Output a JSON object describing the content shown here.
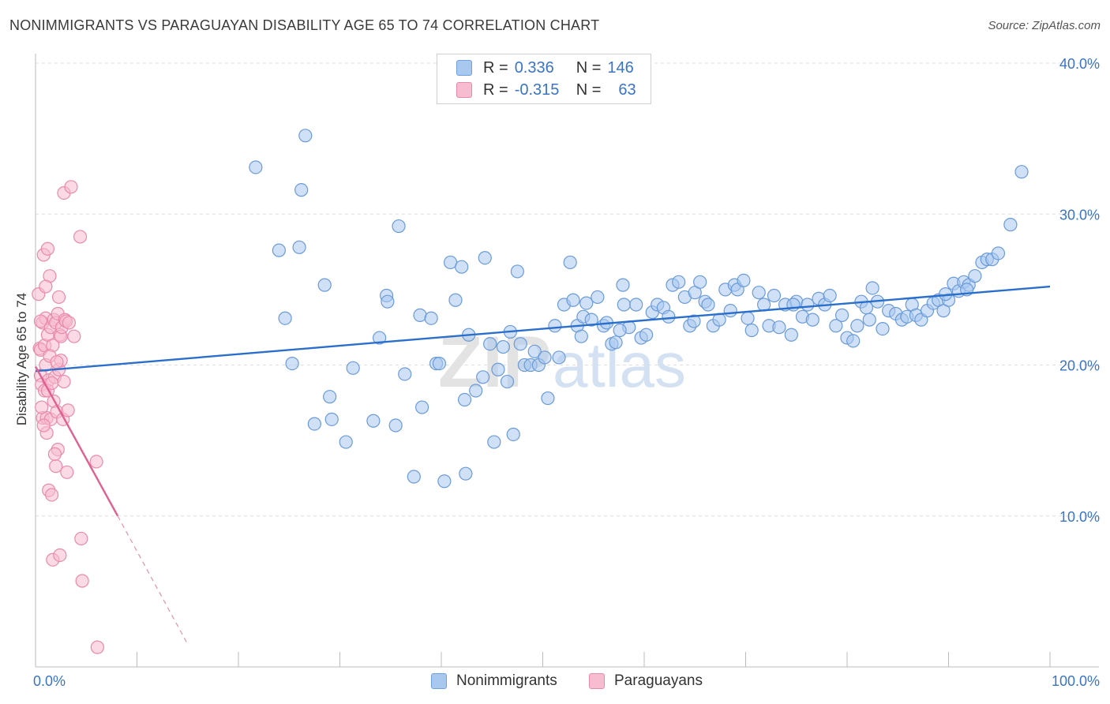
{
  "title": "NONIMMIGRANTS VS PARAGUAYAN DISABILITY AGE 65 TO 74 CORRELATION CHART",
  "source": "Source: ZipAtlas.com",
  "watermark": {
    "zip": "ZIP",
    "atlas": "atlas"
  },
  "legend": {
    "rows": [
      {
        "r_label": "R =",
        "r_value": "0.336",
        "n_label": "N =",
        "n_value": "146",
        "color": "#a9c8f0",
        "border": "#6f9fde"
      },
      {
        "r_label": "R =",
        "r_value": "-0.315",
        "n_label": "N =",
        "n_value": "63",
        "color": "#f7bcd0",
        "border": "#e98aab"
      }
    ]
  },
  "bottom_legend": [
    {
      "label": "Nonimmigrants",
      "color": "#a9c8f0",
      "border": "#6f9fde"
    },
    {
      "label": "Paraguayans",
      "color": "#f7bcd0",
      "border": "#e98aab"
    }
  ],
  "chart_data": {
    "type": "scatter",
    "ylabel": "Disability Age 65 to 74",
    "xlim": [
      0,
      100
    ],
    "ylim": [
      0,
      40
    ],
    "x_tick_labels": [
      "0.0%",
      "100.0%"
    ],
    "y_ticks": [
      10,
      20,
      30,
      40
    ],
    "y_tick_labels": [
      "10.0%",
      "20.0%",
      "30.0%",
      "40.0%"
    ],
    "grid": true,
    "series": [
      {
        "name": "Nonimmigrants",
        "color": "#a9c8f0",
        "stroke": "#6a9bd8",
        "trend": {
          "x": [
            0,
            100
          ],
          "y": [
            19.6,
            25.2
          ],
          "color": "#2b6fcc"
        },
        "points": [
          [
            21.7,
            33.1
          ],
          [
            26.6,
            35.2
          ],
          [
            26.2,
            31.6
          ],
          [
            26.0,
            27.8
          ],
          [
            24.0,
            27.6
          ],
          [
            24.6,
            23.1
          ],
          [
            25.3,
            20.1
          ],
          [
            28.5,
            25.3
          ],
          [
            29.0,
            17.9
          ],
          [
            27.5,
            16.1
          ],
          [
            29.2,
            16.4
          ],
          [
            30.6,
            14.9
          ],
          [
            31.3,
            19.8
          ],
          [
            33.3,
            16.3
          ],
          [
            33.9,
            21.8
          ],
          [
            34.6,
            24.6
          ],
          [
            34.7,
            24.2
          ],
          [
            35.5,
            16.0
          ],
          [
            35.8,
            29.2
          ],
          [
            36.4,
            19.4
          ],
          [
            37.3,
            12.6
          ],
          [
            37.9,
            23.3
          ],
          [
            38.1,
            17.2
          ],
          [
            39.0,
            23.1
          ],
          [
            39.5,
            20.1
          ],
          [
            39.8,
            20.1
          ],
          [
            40.3,
            12.3
          ],
          [
            40.9,
            26.8
          ],
          [
            41.4,
            24.3
          ],
          [
            42.0,
            26.5
          ],
          [
            42.3,
            17.7
          ],
          [
            42.4,
            12.8
          ],
          [
            42.7,
            22.0
          ],
          [
            43.4,
            18.3
          ],
          [
            44.1,
            19.2
          ],
          [
            44.3,
            27.1
          ],
          [
            44.8,
            21.4
          ],
          [
            45.2,
            14.9
          ],
          [
            45.6,
            19.7
          ],
          [
            46.1,
            21.2
          ],
          [
            46.5,
            18.9
          ],
          [
            47.1,
            15.4
          ],
          [
            47.5,
            26.2
          ],
          [
            47.8,
            21.4
          ],
          [
            48.2,
            20.0
          ],
          [
            48.8,
            20.0
          ],
          [
            49.2,
            20.9
          ],
          [
            49.6,
            20.0
          ],
          [
            50.2,
            20.5
          ],
          [
            50.5,
            17.8
          ],
          [
            51.2,
            22.6
          ],
          [
            51.6,
            20.5
          ],
          [
            52.1,
            24.0
          ],
          [
            52.7,
            26.8
          ],
          [
            53.0,
            24.3
          ],
          [
            53.4,
            22.6
          ],
          [
            54.0,
            23.2
          ],
          [
            54.3,
            24.1
          ],
          [
            54.8,
            23.0
          ],
          [
            55.4,
            24.5
          ],
          [
            56.0,
            22.6
          ],
          [
            56.3,
            22.8
          ],
          [
            56.8,
            21.4
          ],
          [
            57.2,
            21.5
          ],
          [
            57.9,
            25.3
          ],
          [
            58.0,
            24.0
          ],
          [
            58.5,
            22.5
          ],
          [
            59.2,
            24.0
          ],
          [
            59.7,
            21.8
          ],
          [
            60.2,
            22.0
          ],
          [
            60.8,
            23.5
          ],
          [
            61.3,
            24.0
          ],
          [
            61.9,
            23.8
          ],
          [
            62.4,
            23.2
          ],
          [
            62.8,
            25.3
          ],
          [
            63.4,
            25.5
          ],
          [
            64.0,
            24.5
          ],
          [
            64.5,
            22.6
          ],
          [
            65.0,
            24.8
          ],
          [
            65.5,
            25.5
          ],
          [
            66.0,
            24.2
          ],
          [
            66.3,
            24.0
          ],
          [
            66.8,
            22.6
          ],
          [
            67.4,
            23.0
          ],
          [
            68.0,
            25.0
          ],
          [
            68.5,
            23.6
          ],
          [
            68.9,
            25.3
          ],
          [
            69.2,
            25.0
          ],
          [
            69.8,
            25.6
          ],
          [
            70.2,
            23.1
          ],
          [
            70.6,
            22.3
          ],
          [
            71.3,
            24.8
          ],
          [
            71.8,
            24.0
          ],
          [
            72.3,
            22.6
          ],
          [
            72.8,
            24.6
          ],
          [
            73.3,
            22.5
          ],
          [
            73.9,
            24.0
          ],
          [
            74.5,
            22.0
          ],
          [
            75.0,
            24.2
          ],
          [
            75.6,
            23.2
          ],
          [
            76.1,
            24.0
          ],
          [
            76.6,
            23.0
          ],
          [
            77.2,
            24.4
          ],
          [
            77.8,
            24.0
          ],
          [
            78.3,
            24.6
          ],
          [
            78.9,
            22.6
          ],
          [
            79.5,
            23.3
          ],
          [
            80.0,
            21.8
          ],
          [
            80.6,
            21.6
          ],
          [
            81.0,
            22.6
          ],
          [
            81.4,
            24.2
          ],
          [
            81.9,
            23.8
          ],
          [
            82.5,
            25.1
          ],
          [
            83.0,
            24.2
          ],
          [
            83.5,
            22.4
          ],
          [
            84.1,
            23.6
          ],
          [
            84.8,
            23.4
          ],
          [
            85.4,
            23.0
          ],
          [
            85.9,
            23.2
          ],
          [
            86.4,
            24.0
          ],
          [
            86.8,
            23.3
          ],
          [
            87.3,
            23.0
          ],
          [
            87.9,
            23.6
          ],
          [
            88.5,
            24.1
          ],
          [
            89.0,
            24.3
          ],
          [
            89.5,
            23.6
          ],
          [
            90.0,
            24.3
          ],
          [
            90.5,
            25.4
          ],
          [
            91.0,
            24.9
          ],
          [
            91.5,
            25.5
          ],
          [
            92.0,
            25.3
          ],
          [
            92.6,
            25.9
          ],
          [
            93.3,
            26.8
          ],
          [
            93.8,
            27.0
          ],
          [
            94.3,
            27.0
          ],
          [
            94.9,
            27.4
          ],
          [
            96.1,
            29.3
          ],
          [
            97.2,
            32.8
          ],
          [
            91.8,
            25.0
          ],
          [
            89.7,
            24.7
          ],
          [
            82.2,
            23.0
          ],
          [
            74.7,
            24.0
          ],
          [
            57.6,
            22.3
          ],
          [
            64.9,
            22.9
          ],
          [
            53.8,
            21.9
          ],
          [
            46.8,
            22.2
          ]
        ]
      },
      {
        "name": "Paraguayans",
        "color": "#f7bcd0",
        "stroke": "#e98aab",
        "trend": {
          "x": [
            0,
            8.1
          ],
          "y": [
            19.9,
            10.0
          ],
          "color": "#e0608f"
        },
        "trend_dashed": {
          "x": [
            8.1,
            15
          ],
          "y": [
            10.0,
            1.5
          ],
          "color": "#e890af"
        },
        "points": [
          [
            0.3,
            24.7
          ],
          [
            0.4,
            21.1
          ],
          [
            0.5,
            21.0
          ],
          [
            0.5,
            19.3
          ],
          [
            0.6,
            18.7
          ],
          [
            0.7,
            22.8
          ],
          [
            0.7,
            16.5
          ],
          [
            0.8,
            27.3
          ],
          [
            0.9,
            18.3
          ],
          [
            0.9,
            21.3
          ],
          [
            1.0,
            23.1
          ],
          [
            1.0,
            20.0
          ],
          [
            1.1,
            16.5
          ],
          [
            1.1,
            15.5
          ],
          [
            1.2,
            27.7
          ],
          [
            1.2,
            22.0
          ],
          [
            1.3,
            19.0
          ],
          [
            1.3,
            11.7
          ],
          [
            1.4,
            25.9
          ],
          [
            1.5,
            22.5
          ],
          [
            1.5,
            16.4
          ],
          [
            1.6,
            11.4
          ],
          [
            1.7,
            21.3
          ],
          [
            1.7,
            7.1
          ],
          [
            1.8,
            23.0
          ],
          [
            1.8,
            17.6
          ],
          [
            1.9,
            19.2
          ],
          [
            2.0,
            22.8
          ],
          [
            2.0,
            13.3
          ],
          [
            2.1,
            16.9
          ],
          [
            2.2,
            23.4
          ],
          [
            2.2,
            14.4
          ],
          [
            2.3,
            24.5
          ],
          [
            2.3,
            19.7
          ],
          [
            2.4,
            22.0
          ],
          [
            2.4,
            7.4
          ],
          [
            2.5,
            21.9
          ],
          [
            2.6,
            22.5
          ],
          [
            2.7,
            16.4
          ],
          [
            2.8,
            18.9
          ],
          [
            2.8,
            31.4
          ],
          [
            2.9,
            23.0
          ],
          [
            3.0,
            22.9
          ],
          [
            3.1,
            12.9
          ],
          [
            3.3,
            22.8
          ],
          [
            3.5,
            31.8
          ],
          [
            3.8,
            21.9
          ],
          [
            4.4,
            28.5
          ],
          [
            4.5,
            8.5
          ],
          [
            4.6,
            5.7
          ],
          [
            6.0,
            13.6
          ],
          [
            6.1,
            1.3
          ],
          [
            0.6,
            17.2
          ],
          [
            1.0,
            25.2
          ],
          [
            1.4,
            20.6
          ],
          [
            1.9,
            14.1
          ],
          [
            2.5,
            20.3
          ],
          [
            0.8,
            16.0
          ],
          [
            1.2,
            18.3
          ],
          [
            3.2,
            17.0
          ],
          [
            2.1,
            20.2
          ],
          [
            0.5,
            22.9
          ],
          [
            1.6,
            18.8
          ]
        ]
      }
    ]
  }
}
